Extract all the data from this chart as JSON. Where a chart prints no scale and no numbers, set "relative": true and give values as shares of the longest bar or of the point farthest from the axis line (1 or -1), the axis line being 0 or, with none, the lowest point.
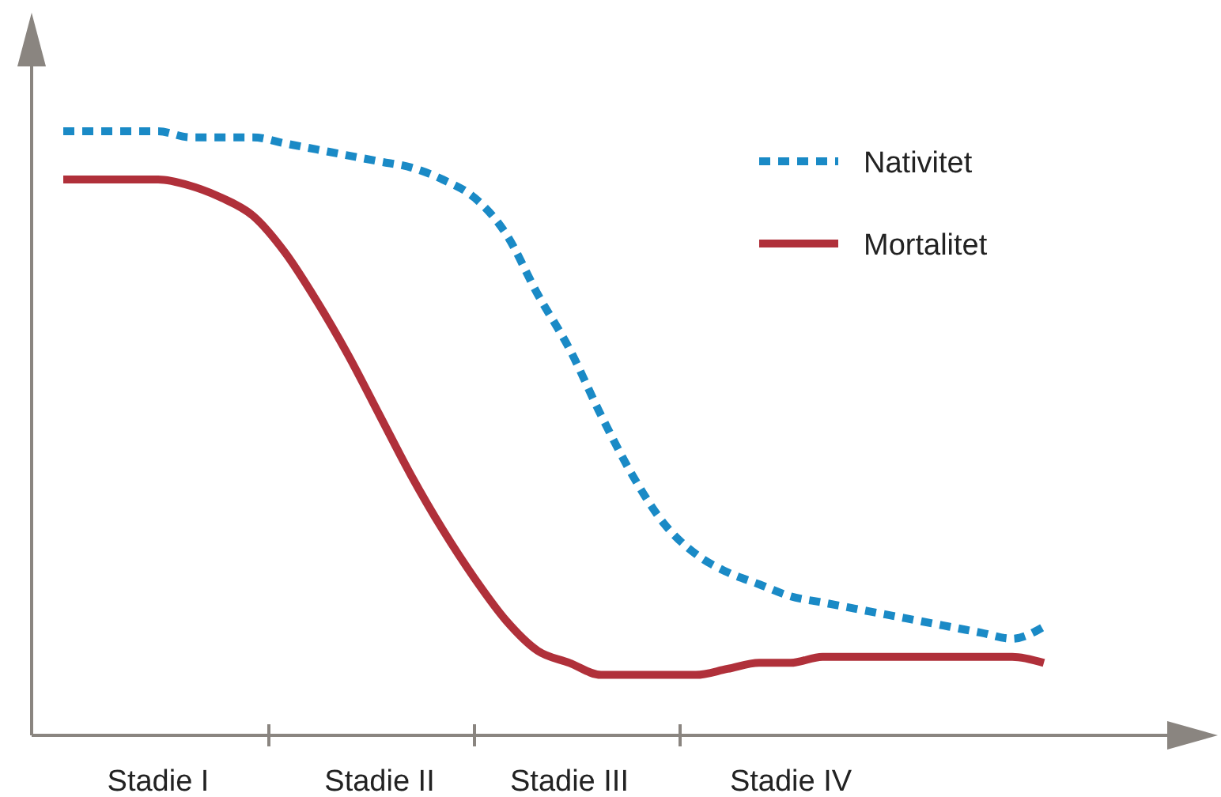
{
  "chart_data": {
    "type": "line",
    "relative": true,
    "categories": [
      null,
      null,
      null,
      null,
      "Stadie I",
      null,
      null,
      null,
      null,
      null,
      null,
      "Stadie II",
      null,
      null,
      null,
      null,
      null,
      "Stadie III",
      null,
      null,
      null,
      null,
      null,
      null,
      "Stadie IV",
      null,
      null,
      null,
      null,
      null,
      null,
      null,
      null,
      null,
      null,
      null,
      null,
      null
    ],
    "series": [
      {
        "name": "Nativitet",
        "color": "#1a8ac6",
        "line_style": "dotted",
        "values": [
          null,
          1.0,
          1.0,
          1.0,
          1.0,
          0.99,
          0.99,
          0.99,
          0.98,
          0.97,
          0.96,
          0.95,
          0.94,
          0.92,
          0.89,
          0.83,
          0.73,
          0.64,
          0.53,
          0.43,
          0.35,
          0.3,
          0.27,
          0.25,
          0.23,
          0.22,
          0.21,
          0.2,
          0.19,
          0.18,
          0.17,
          0.16,
          0.18,
          null,
          null,
          null,
          null,
          null
        ]
      },
      {
        "name": "Mortalitet",
        "color": "#b0303a",
        "line_style": "solid",
        "values": [
          null,
          0.92,
          0.92,
          0.92,
          0.92,
          0.91,
          0.89,
          0.86,
          0.8,
          0.72,
          0.63,
          0.53,
          0.43,
          0.34,
          0.26,
          0.19,
          0.14,
          0.12,
          0.1,
          0.1,
          0.1,
          0.1,
          0.11,
          0.12,
          0.12,
          0.13,
          0.13,
          0.13,
          0.13,
          0.13,
          0.13,
          0.13,
          0.12,
          null,
          null,
          null,
          null,
          null
        ]
      }
    ],
    "legend": "top right"
  }
}
